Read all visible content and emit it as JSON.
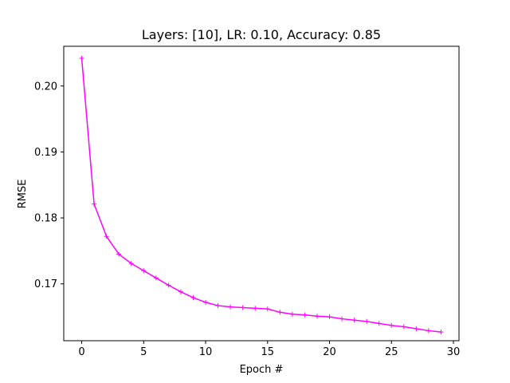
{
  "chart_data": {
    "type": "line",
    "title": "Layers: [10], LR: 0.10, Accuracy: 0.85",
    "xlabel": "Epoch #",
    "ylabel": "RMSE",
    "xlim": [
      -1.45,
      30.45
    ],
    "ylim": [
      0.16138,
      0.20602
    ],
    "xticks": [
      0,
      5,
      10,
      15,
      20,
      25,
      30
    ],
    "xtick_labels": [
      "0",
      "5",
      "10",
      "15",
      "20",
      "25",
      "30"
    ],
    "yticks": [
      0.17,
      0.18,
      0.19,
      0.2
    ],
    "ytick_labels": [
      "0.17",
      "0.18",
      "0.19",
      "0.20"
    ],
    "grid": false,
    "legend": "none",
    "series": [
      {
        "color": "#ff00ff",
        "marker": "+",
        "x": [
          0,
          1,
          2,
          3,
          4,
          5,
          6,
          7,
          8,
          9,
          10,
          11,
          12,
          13,
          14,
          15,
          16,
          17,
          18,
          19,
          20,
          21,
          22,
          23,
          24,
          25,
          26,
          27,
          28,
          29
        ],
        "y": [
          0.2042,
          0.1821,
          0.1772,
          0.1745,
          0.1731,
          0.172,
          0.1709,
          0.1698,
          0.1688,
          0.1679,
          0.1672,
          0.1667,
          0.1665,
          0.1664,
          0.1663,
          0.1662,
          0.1657,
          0.1654,
          0.1653,
          0.1651,
          0.165,
          0.1647,
          0.1645,
          0.1643,
          0.164,
          0.1637,
          0.1635,
          0.1632,
          0.1629,
          0.1627
        ]
      }
    ]
  }
}
